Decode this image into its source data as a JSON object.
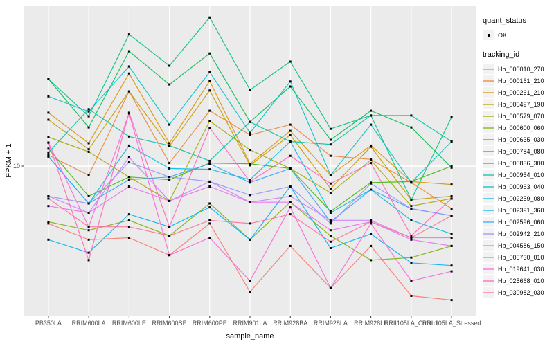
{
  "figure": {
    "y_axis_label": "FPKM + 1",
    "x_axis_label": "sample_name",
    "legend": {
      "quant_status_title": "quant_status",
      "quant_status_items": [
        {
          "label": "OK",
          "marker": "black-point"
        }
      ],
      "tracking_id_title": "tracking_id"
    },
    "colors": {
      "panel_background": "#EBEBEB",
      "gridline": "#FFFFFF",
      "point": "#000000",
      "tick_text": "#4D4D4D",
      "legend_key_background": "#F2F2F2"
    }
  },
  "chart_data": {
    "type": "line",
    "title": "",
    "xlabel": "sample_name",
    "ylabel": "FPKM + 1",
    "y_scale": "log10",
    "ylim": [
      1.5,
      78
    ],
    "y_ticks": [
      10
    ],
    "grid": "major-white-on-grey",
    "legend_position": "right",
    "point_marker": "small-black-square",
    "categories": [
      "PB350LA",
      "RRIM600LA",
      "RRIM600LE",
      "RRIM600SE",
      "RRIM600PE",
      "RRIM901LA",
      "RRIM928BA",
      "RRIM928LA",
      "RRIM928LE",
      "RRII105LA_Control",
      "RRII105LA_Stressed"
    ],
    "series": [
      {
        "name": "Hb_000010_270",
        "color": "#F8766D",
        "values": [
          4.8,
          3.9,
          4.0,
          3.2,
          4.8,
          2.0,
          3.6,
          2.1,
          3.6,
          1.9,
          1.8
        ]
      },
      {
        "name": "Hb_000161_210",
        "color": "#EA8331",
        "values": [
          11.5,
          8.9,
          26.0,
          10.4,
          20.3,
          14.9,
          17.0,
          11.4,
          10.9,
          8.1,
          5.8
        ]
      },
      {
        "name": "Hb_000261_210",
        "color": "#D89000",
        "values": [
          19.8,
          13.4,
          32.7,
          13.4,
          29.7,
          10.3,
          15.7,
          8.9,
          13.0,
          8.2,
          7.9
        ]
      },
      {
        "name": "Hb_000497_190",
        "color": "#C09B00",
        "values": [
          18.1,
          12.4,
          26.0,
          12.9,
          26.3,
          10.1,
          14.9,
          7.5,
          12.8,
          6.5,
          6.8
        ]
      },
      {
        "name": "Hb_000579_070",
        "color": "#A3A500",
        "values": [
          14.5,
          12.0,
          8.7,
          6.4,
          17.8,
          12.3,
          9.7,
          7.1,
          10.8,
          6.0,
          6.6
        ]
      },
      {
        "name": "Hb_000600_060",
        "color": "#7CAE00",
        "values": [
          4.9,
          4.4,
          5.0,
          4.1,
          6.2,
          3.9,
          6.3,
          4.1,
          3.0,
          3.1,
          3.6
        ]
      },
      {
        "name": "Hb_000635_030",
        "color": "#39B600",
        "values": [
          12.5,
          6.8,
          8.7,
          8.4,
          10.4,
          10.3,
          9.7,
          5.6,
          8.1,
          8.2,
          10.0
        ]
      },
      {
        "name": "Hb_000784_080",
        "color": "#00BB4E",
        "values": [
          30.5,
          16.4,
          43.5,
          28.4,
          42.3,
          17.6,
          27.7,
          14.0,
          20.3,
          16.4,
          9.8
        ]
      },
      {
        "name": "Hb_000836_300",
        "color": "#00BF7D",
        "values": [
          30.5,
          18.9,
          54.0,
          36.1,
          67.0,
          26.5,
          38.1,
          16.1,
          19.1,
          6.5,
          18.7
        ]
      },
      {
        "name": "Hb_000954_010",
        "color": "#00C1A3",
        "values": [
          11.9,
          20.7,
          14.6,
          13.0,
          10.7,
          17.6,
          13.7,
          13.2,
          19.1,
          19.1,
          13.7
        ]
      },
      {
        "name": "Hb_000963_040",
        "color": "#00BFC4",
        "values": [
          24.4,
          20.1,
          35.8,
          17.0,
          33.3,
          15.3,
          29.5,
          8.9,
          17.0,
          8.1,
          13.7
        ]
      },
      {
        "name": "Hb_002259_080",
        "color": "#00BAE0",
        "values": [
          11.3,
          6.2,
          13.0,
          9.7,
          9.6,
          8.4,
          13.7,
          5.5,
          7.4,
          5.0,
          4.2
        ]
      },
      {
        "name": "Hb_002391_360",
        "color": "#00B0F6",
        "values": [
          3.9,
          3.3,
          5.4,
          4.6,
          5.9,
          3.9,
          7.7,
          3.5,
          4.2,
          2.9,
          2.8
        ]
      },
      {
        "name": "Hb_002596_060",
        "color": "#35A2FF",
        "values": [
          11.3,
          6.2,
          8.4,
          8.7,
          10.3,
          8.1,
          9.7,
          4.9,
          7.4,
          5.8,
          5.3
        ]
      },
      {
        "name": "Hb_002942_210",
        "color": "#9590FF",
        "values": [
          6.8,
          6.2,
          10.5,
          8.7,
          8.2,
          6.9,
          7.7,
          4.8,
          8.0,
          5.8,
          5.3
        ]
      },
      {
        "name": "Hb_004586_150",
        "color": "#C77CFF",
        "values": [
          6.8,
          5.5,
          11.2,
          6.4,
          8.2,
          6.3,
          6.8,
          5.0,
          5.0,
          4.0,
          4.0
        ]
      },
      {
        "name": "Hb_005730_010",
        "color": "#E76BF3",
        "values": [
          6.0,
          5.5,
          7.7,
          6.4,
          7.7,
          6.3,
          6.3,
          4.4,
          4.9,
          3.9,
          3.6
        ]
      },
      {
        "name": "Hb_019641_030",
        "color": "#FA62DB",
        "values": [
          13.5,
          4.6,
          19.6,
          3.2,
          4.0,
          2.3,
          5.9,
          2.1,
          4.8,
          2.3,
          2.6
        ]
      },
      {
        "name": "Hb_025668_010",
        "color": "#FF62BC",
        "values": [
          13.5,
          3.0,
          19.8,
          4.6,
          16.3,
          8.2,
          11.4,
          8.0,
          10.4,
          4.1,
          6.6
        ]
      },
      {
        "name": "Hb_030982_030",
        "color": "#FF6A98",
        "values": [
          6.6,
          4.6,
          4.6,
          4.1,
          5.0,
          4.8,
          5.4,
          3.8,
          4.9,
          4.0,
          5.3
        ]
      }
    ]
  }
}
